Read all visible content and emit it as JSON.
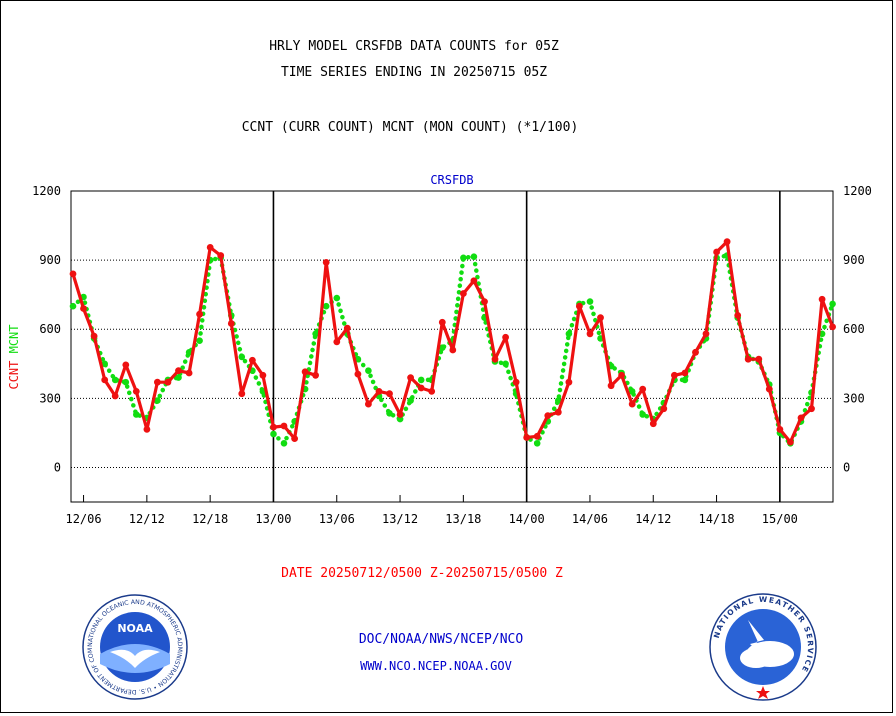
{
  "header": {
    "title_line1": "HRLY MODEL CRSFDB DATA COUNTS for 05Z",
    "title_line2": "TIME SERIES ENDING IN 20250715 05Z",
    "title_line3": "CCNT (CURR COUNT) MCNT (MON COUNT) (*1/100)"
  },
  "footer": {
    "date_range": "DATE 20250712/0500 Z-20250715/0500 Z",
    "credit_line1": "DOC/NOAA/NWS/NCEP/NCO",
    "credit_line2": "WWW.NCO.NCEP.NOAA.GOV"
  },
  "logos": {
    "noaa_label": "NOAA",
    "noaa_ring_text": "NATIONAL OCEANIC AND ATMOSPHERIC ADMINISTRATION • U.S. DEPARTMENT OF COMMERCE •",
    "nws_ring_text": "NATIONAL WEATHER SERVICE"
  },
  "colors": {
    "ccnt": "#ee1111",
    "mcnt": "#11dd11",
    "panel_label": "#0000cc",
    "date_range": "#ff0000"
  },
  "chart_data": {
    "type": "line",
    "panel_label": "CRSFDB",
    "ylim": [
      -150,
      1200
    ],
    "yticks": [
      0,
      300,
      600,
      900,
      1200
    ],
    "ylabel_parts": [
      {
        "text": "CCNT",
        "color": "#ee1111"
      },
      {
        "text": "MCNT",
        "color": "#11dd11"
      }
    ],
    "x_start": "12/05",
    "x_step_hours": 1,
    "xtick_labels": [
      "12/06",
      "12/12",
      "12/18",
      "13/00",
      "13/06",
      "13/12",
      "13/18",
      "14/00",
      "14/06",
      "14/12",
      "14/18",
      "15/00"
    ],
    "xtick_index": [
      1,
      7,
      13,
      19,
      25,
      31,
      37,
      43,
      49,
      55,
      61,
      67
    ],
    "day_divider_index": [
      19,
      43,
      67
    ],
    "grid": "horizontal-dotted",
    "series": [
      {
        "name": "CCNT",
        "color": "#ee1111",
        "style": "solid",
        "values": [
          840,
          690,
          570,
          380,
          310,
          445,
          330,
          165,
          370,
          370,
          420,
          410,
          665,
          955,
          920,
          625,
          320,
          465,
          400,
          175,
          180,
          125,
          415,
          400,
          890,
          545,
          605,
          405,
          275,
          330,
          320,
          230,
          390,
          345,
          330,
          630,
          510,
          755,
          810,
          720,
          470,
          565,
          370,
          130,
          135,
          225,
          240,
          370,
          700,
          580,
          650,
          355,
          400,
          275,
          340,
          190,
          255,
          400,
          410,
          500,
          580,
          935,
          980,
          660,
          470,
          470,
          340,
          165,
          110,
          215,
          255,
          730,
          610
        ]
      },
      {
        "name": "MCNT",
        "color": "#11dd11",
        "style": "dotted",
        "values": [
          700,
          740,
          560,
          450,
          380,
          370,
          230,
          215,
          290,
          380,
          390,
          500,
          550,
          900,
          910,
          660,
          480,
          420,
          330,
          145,
          105,
          200,
          340,
          580,
          700,
          735,
          580,
          470,
          420,
          310,
          235,
          210,
          290,
          380,
          380,
          520,
          550,
          910,
          915,
          650,
          460,
          450,
          320,
          130,
          105,
          200,
          290,
          580,
          710,
          720,
          560,
          440,
          410,
          330,
          230,
          210,
          280,
          380,
          380,
          500,
          560,
          910,
          920,
          650,
          480,
          460,
          360,
          150,
          105,
          200,
          325,
          580,
          710
        ]
      }
    ]
  }
}
